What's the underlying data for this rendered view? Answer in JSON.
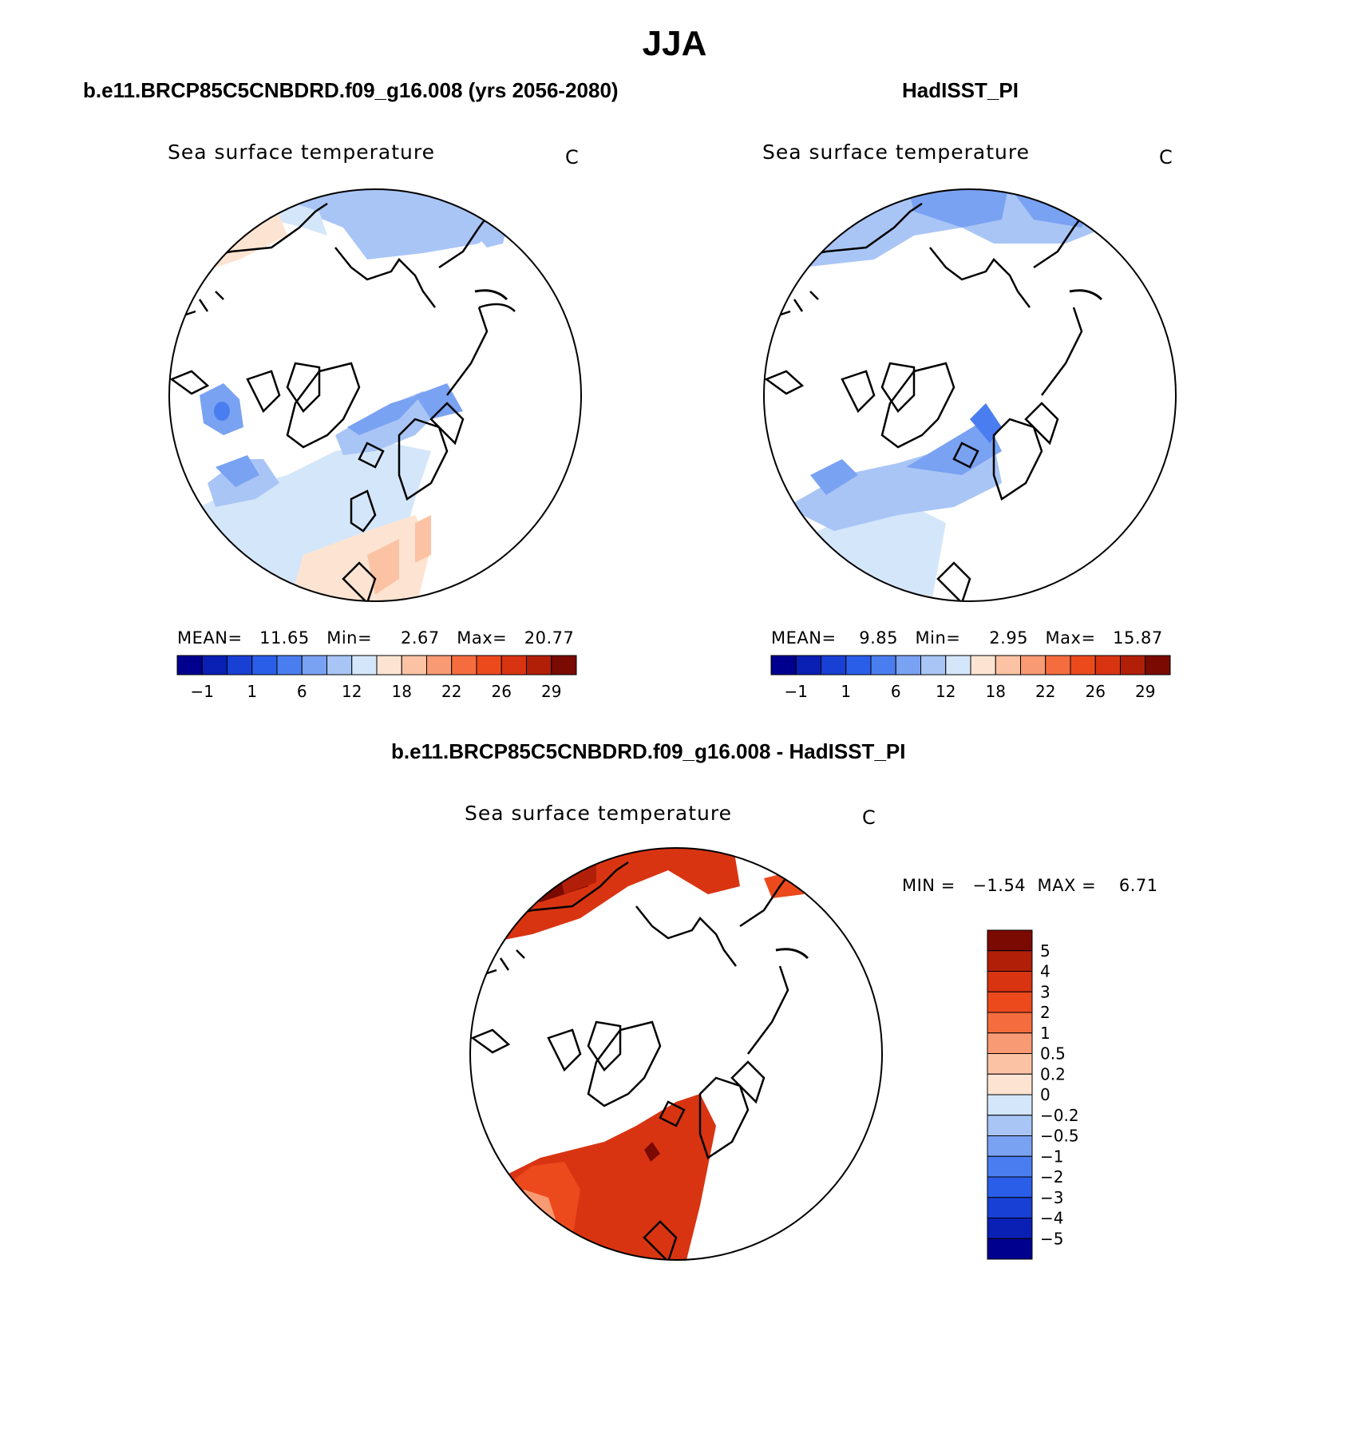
{
  "figure": {
    "season": "JJA",
    "model_header": "b.e11.BRCP85C5CNBDRD.f09_g16.008 (yrs 2056-2080)",
    "obs_header": "HadISST_PI",
    "diff_header": "b.e11.BRCP85C5CNBDRD.f09_g16.008 - HadISST_PI"
  },
  "panels": {
    "model": {
      "variable": "Sea surface temperature",
      "units": "C",
      "stats": "MEAN=   11.65   Min=     2.67   Max=   20.77"
    },
    "obs": {
      "variable": "Sea surface temperature",
      "units": "C",
      "stats": "MEAN=    9.85   Min=     2.95   Max=   15.87"
    },
    "diff": {
      "variable": "Sea surface temperature",
      "units": "C",
      "stats": "MIN =   −1.54  MAX =    6.71"
    }
  },
  "colorbar_abs": {
    "colors": [
      "#00008f",
      "#0a1fb4",
      "#1840d4",
      "#2a5ee9",
      "#4a7ef0",
      "#7aa2f2",
      "#a9c5f6",
      "#d4e6fa",
      "#fde4d2",
      "#fbc3a4",
      "#f89a73",
      "#f56d3e",
      "#ec4a1d",
      "#d93412",
      "#b21f08",
      "#7a0a02"
    ],
    "labels": [
      "−1",
      "1",
      "6",
      "12",
      "18",
      "22",
      "26",
      "29"
    ]
  },
  "colorbar_diff": {
    "colors": [
      "#7a0a02",
      "#b21f08",
      "#d93412",
      "#ec4a1d",
      "#f56d3e",
      "#f89a73",
      "#fbc3a4",
      "#fde4d2",
      "#d4e6fa",
      "#a9c5f6",
      "#7aa2f2",
      "#4a7ef0",
      "#2a5ee9",
      "#1840d4",
      "#0a1fb4",
      "#00008f"
    ],
    "labels": [
      "5",
      "4",
      "3",
      "2",
      "1",
      "0.5",
      "0.2",
      "0",
      "−0.2",
      "−0.5",
      "−1",
      "−2",
      "−3",
      "−4",
      "−5"
    ]
  }
}
